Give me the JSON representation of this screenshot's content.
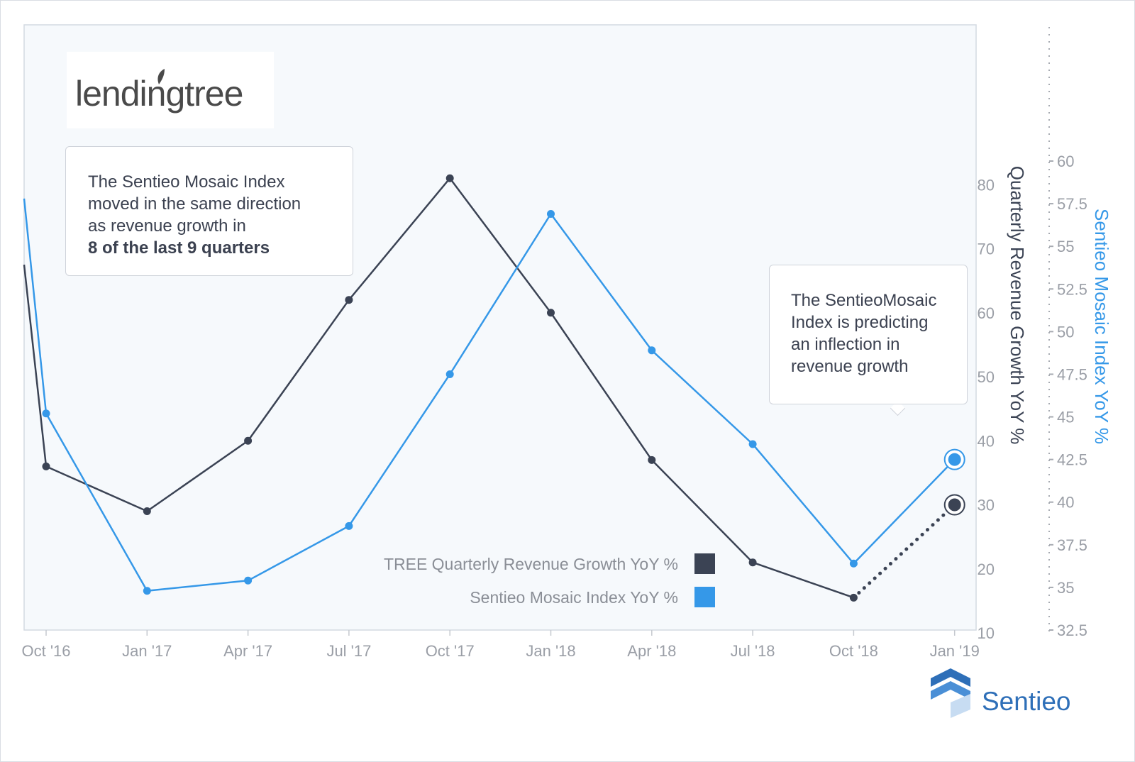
{
  "logo": {
    "text": "lendingtree"
  },
  "brand": {
    "name": "Sentieo"
  },
  "callouts": {
    "note1": {
      "lines": [
        "The Sentieo Mosaic Index",
        "moved in the same direction",
        "as revenue growth in"
      ],
      "bold": "8 of the last 9 quarters"
    },
    "note2": {
      "lines": [
        "The SentieoMosaic",
        "Index is predicting",
        "an inflection in",
        "revenue growth"
      ]
    }
  },
  "colors": {
    "revenue": "#3b4354",
    "mosaic": "#3598e8",
    "plot_bg": "#f6f9fc"
  },
  "chart_data": {
    "type": "line",
    "categories": [
      "Oct '16",
      "Jan '17",
      "Apr '17",
      "Jul '17",
      "Oct '17",
      "Jan '18",
      "Apr '18",
      "Jul '18",
      "Oct '18",
      "Jan '19"
    ],
    "xlabel": "",
    "y_left": {
      "label": "Quarterly Revenue Growth YoY %",
      "range": [
        10,
        90
      ],
      "ticks": [
        10,
        20,
        30,
        40,
        50,
        60,
        70,
        80
      ]
    },
    "y_right": {
      "label": "Sentieo Mosaic Index YoY %",
      "range": [
        32.5,
        60
      ],
      "ticks": [
        "32.5",
        "35",
        "37.5",
        "40",
        "42.5",
        "45",
        "47.5",
        "50",
        "52.5",
        "55",
        "57.5",
        "60"
      ]
    },
    "series": [
      {
        "name": "TREE Quarterly Revenue Growth YoY %",
        "axis": "left",
        "start_value": 67.5,
        "values": [
          36,
          29,
          40,
          62,
          81,
          60,
          37,
          21,
          15.5,
          30
        ],
        "projected_last": true
      },
      {
        "name": "Sentieo Mosaic Index YoY %",
        "axis": "right",
        "start_value": 57.8,
        "values": [
          45.2,
          34.8,
          35.4,
          38.6,
          47.5,
          56.9,
          48.9,
          43.4,
          36.4,
          42.5
        ],
        "projected_last": false
      }
    ],
    "legend": {
      "position": "bottom-center"
    },
    "grid": false
  }
}
